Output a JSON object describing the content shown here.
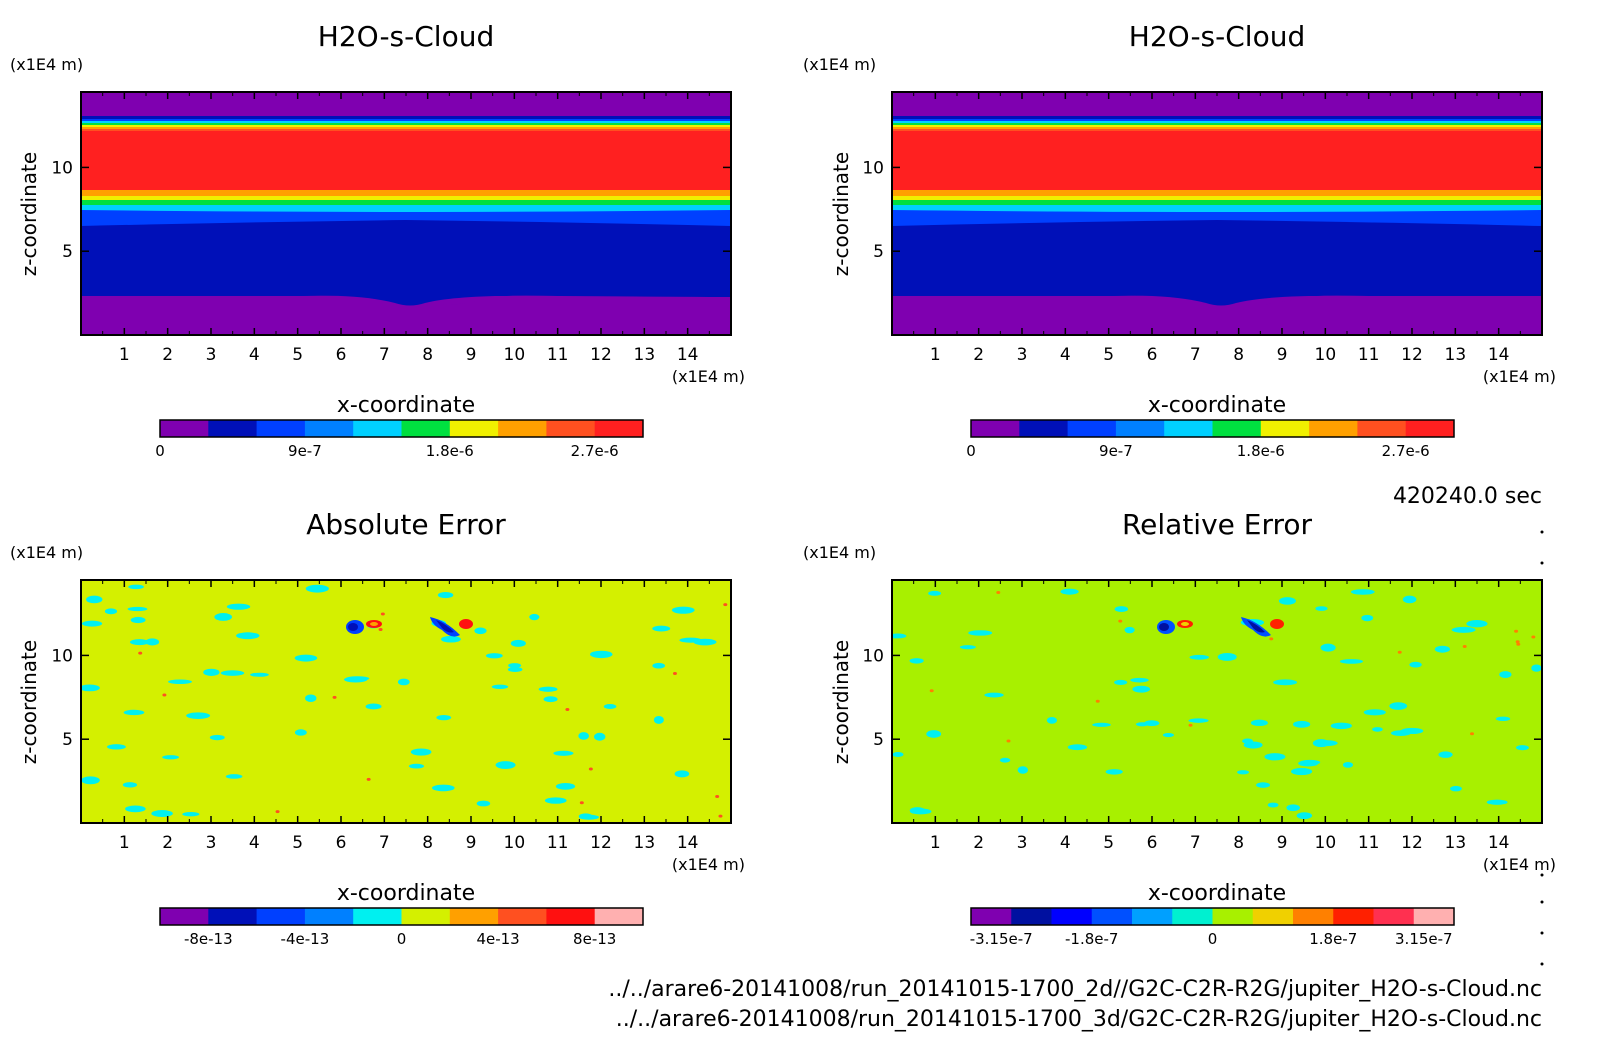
{
  "footer": {
    "time_label": "420240.0 sec",
    "path_2d": "../../arare6-20141008/run_20141015-1700_2d//G2C-C2R-R2G/jupiter_H2O-s-Cloud.nc",
    "path_3d": "../../arare6-20141008/run_20141015-1700_3d/G2C-C2R-R2G/jupiter_H2O-s-Cloud.nc"
  },
  "chart_data": [
    {
      "type": "heatmap",
      "title": "H2O-s-Cloud",
      "xlabel": "x-coordinate",
      "ylabel": "z-coordinate",
      "x_unit": "(x1E4 m)",
      "y_unit": "(x1E4 m)",
      "xlim": [
        0,
        15
      ],
      "ylim": [
        0,
        14.5
      ],
      "xticks": [
        1,
        2,
        3,
        4,
        5,
        6,
        7,
        8,
        9,
        10,
        11,
        12,
        13,
        14
      ],
      "yticks": [
        5,
        10
      ],
      "colorbar": {
        "colors": [
          "#7f00b0",
          "#0010b8",
          "#0040ff",
          "#0080ff",
          "#00d0ff",
          "#00e040",
          "#f0f000",
          "#ffa000",
          "#ff5020",
          "#ff2020"
        ],
        "tick_labels": [
          "0",
          "9e-7",
          "1.8e-6",
          "2.7e-6"
        ],
        "tick_values": [
          0,
          9e-07,
          1.8e-06,
          2.7e-06
        ],
        "range": [
          0,
          3e-06
        ]
      }
    },
    {
      "type": "heatmap",
      "title": "H2O-s-Cloud",
      "xlabel": "x-coordinate",
      "ylabel": "z-coordinate",
      "x_unit": "(x1E4 m)",
      "y_unit": "(x1E4 m)",
      "xlim": [
        0,
        15
      ],
      "ylim": [
        0,
        14.5
      ],
      "xticks": [
        1,
        2,
        3,
        4,
        5,
        6,
        7,
        8,
        9,
        10,
        11,
        12,
        13,
        14
      ],
      "yticks": [
        5,
        10
      ],
      "colorbar": {
        "colors": [
          "#7f00b0",
          "#0010b8",
          "#0040ff",
          "#0080ff",
          "#00d0ff",
          "#00e040",
          "#f0f000",
          "#ffa000",
          "#ff5020",
          "#ff2020"
        ],
        "tick_labels": [
          "0",
          "9e-7",
          "1.8e-6",
          "2.7e-6"
        ],
        "tick_values": [
          0,
          9e-07,
          1.8e-06,
          2.7e-06
        ],
        "range": [
          0,
          3e-06
        ]
      }
    },
    {
      "type": "heatmap",
      "title": "Absolute Error",
      "xlabel": "x-coordinate",
      "ylabel": "z-coordinate",
      "x_unit": "(x1E4 m)",
      "y_unit": "(x1E4 m)",
      "xlim": [
        0,
        15
      ],
      "ylim": [
        0,
        14.5
      ],
      "xticks": [
        1,
        2,
        3,
        4,
        5,
        6,
        7,
        8,
        9,
        10,
        11,
        12,
        13,
        14
      ],
      "yticks": [
        5,
        10
      ],
      "background": "#d4f000",
      "colorbar": {
        "colors": [
          "#7f00b0",
          "#0010b8",
          "#0040ff",
          "#0080ff",
          "#00f0f0",
          "#d4f000",
          "#ffa000",
          "#ff5020",
          "#ff1010",
          "#ffb0b0"
        ],
        "tick_labels": [
          "-8e-13",
          "-4e-13",
          "0",
          "4e-13",
          "8e-13"
        ],
        "tick_values": [
          -8e-13,
          -4e-13,
          0,
          4e-13,
          8e-13
        ],
        "range": [
          -1e-12,
          1e-12
        ]
      }
    },
    {
      "type": "heatmap",
      "title": "Relative Error",
      "xlabel": "x-coordinate",
      "ylabel": "z-coordinate",
      "x_unit": "(x1E4 m)",
      "y_unit": "(x1E4 m)",
      "xlim": [
        0,
        15
      ],
      "ylim": [
        0,
        14.5
      ],
      "xticks": [
        1,
        2,
        3,
        4,
        5,
        6,
        7,
        8,
        9,
        10,
        11,
        12,
        13,
        14
      ],
      "yticks": [
        5,
        10
      ],
      "background": "#a8f000",
      "colorbar": {
        "colors": [
          "#7f00b0",
          "#0010a0",
          "#0000ff",
          "#0050ff",
          "#00a0ff",
          "#00f0d0",
          "#a8f000",
          "#f0d000",
          "#ff8000",
          "#ff2000",
          "#ff3050",
          "#ffb0b0"
        ],
        "tick_labels": [
          "-3.15e-7",
          "-1.8e-7",
          "0",
          "1.8e-7",
          "3.15e-7"
        ],
        "tick_values": [
          -3.15e-07,
          -1.8e-07,
          0,
          1.8e-07,
          3.15e-07
        ],
        "range": [
          -3.6e-07,
          3.6e-07
        ]
      }
    }
  ]
}
